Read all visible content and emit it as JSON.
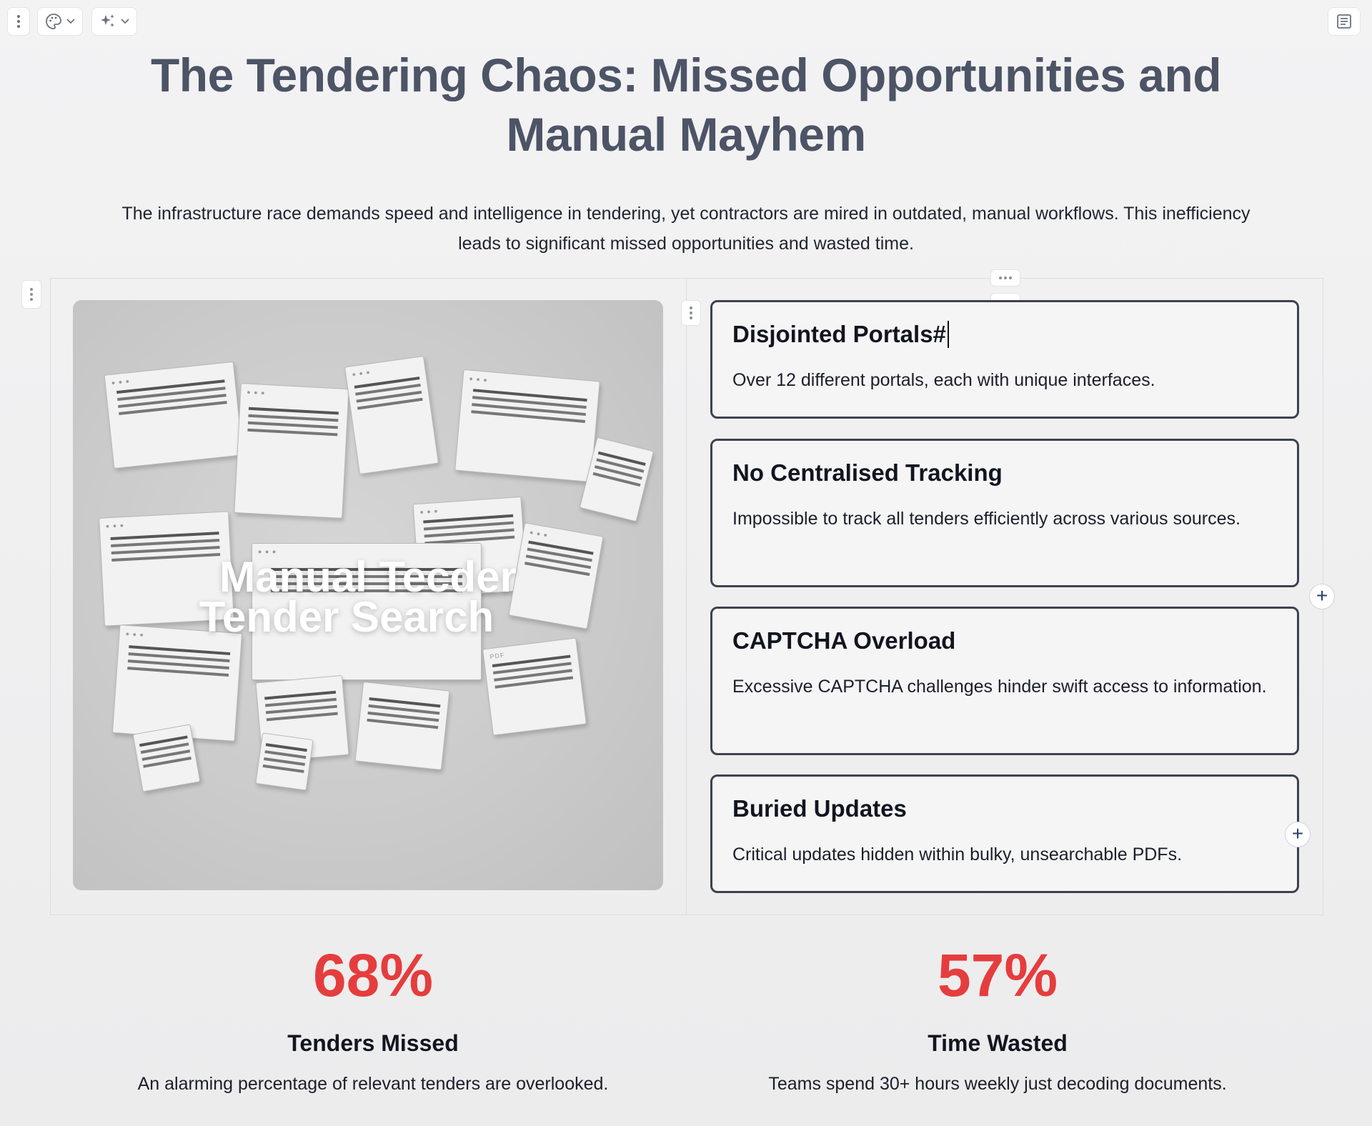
{
  "toolbar": {
    "menu_icon": "vertical-dots-icon",
    "theme_icon": "palette-icon",
    "ai_icon": "sparkle-icon",
    "notes_icon": "notes-icon"
  },
  "slide": {
    "title": "The Tendering Chaos: Missed Opportunities and Manual Mayhem",
    "intro": "The infrastructure race demands speed and intelligence in tendering, yet contractors are mired in outdated, manual workflows. This inefficiency leads to significant missed opportunities and wasted time.",
    "image_text_line1": "Manual Tecder",
    "image_text_line2": "Tender Search"
  },
  "cards": [
    {
      "title": "Disjointed Portals#",
      "text": "Over 12 different portals, each with unique interfaces."
    },
    {
      "title": "No Centralised Tracking",
      "text": "Impossible to track all tenders efficiently across various sources."
    },
    {
      "title": "CAPTCHA Overload",
      "text": "Excessive CAPTCHA challenges hinder swift access to information."
    },
    {
      "title": "Buried Updates",
      "text": "Critical updates hidden within bulky, unsearchable PDFs."
    }
  ],
  "stats": [
    {
      "value": "68%",
      "label": "Tenders Missed",
      "desc": "An alarming percentage of relevant tenders are overlooked."
    },
    {
      "value": "57%",
      "label": "Time Wasted",
      "desc": "Teams spend 30+ hours weekly just decoding documents."
    }
  ],
  "colors": {
    "title": "#4d5466",
    "stat": "#e53d3d",
    "card_border": "#3e4250"
  }
}
